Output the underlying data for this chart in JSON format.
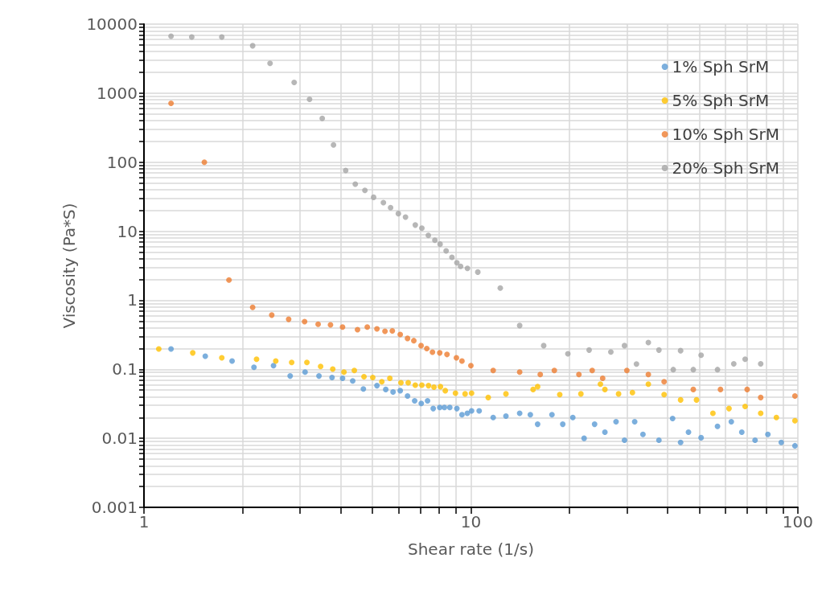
{
  "chart_data": {
    "type": "scatter",
    "xlabel": "Shear rate (1/s)",
    "ylabel": "Viscosity (Pa*S)",
    "log": "xy",
    "marker": "circle",
    "grid": true,
    "legend": "top right",
    "xlim": [
      1,
      100
    ],
    "ylim": [
      0.001,
      10000
    ],
    "xticks": [
      1,
      {
        "value": 2,
        "label": null
      },
      {
        "value": 3,
        "label": null
      },
      {
        "value": 4,
        "label": null
      },
      {
        "value": 5,
        "label": null
      },
      {
        "value": 6,
        "label": null
      },
      {
        "value": 7,
        "label": null
      },
      {
        "value": 8,
        "label": null
      },
      {
        "value": 9,
        "label": null
      },
      10,
      {
        "value": 20,
        "label": null
      },
      {
        "value": 30,
        "label": null
      },
      {
        "value": 40,
        "label": null
      },
      {
        "value": 50,
        "label": null
      },
      {
        "value": 60,
        "label": null
      },
      {
        "value": 70,
        "label": null
      },
      {
        "value": 80,
        "label": null
      },
      {
        "value": 90,
        "label": null
      },
      100
    ],
    "yticks": [
      0.001,
      {
        "value": 0.002,
        "label": null
      },
      {
        "value": 0.003,
        "label": null
      },
      {
        "value": 0.004,
        "label": null
      },
      {
        "value": 0.005,
        "label": null
      },
      {
        "value": 0.006,
        "label": null
      },
      {
        "value": 0.007,
        "label": null
      },
      {
        "value": 0.008,
        "label": null
      },
      {
        "value": 0.009,
        "label": null
      },
      0.01,
      {
        "value": 0.02,
        "label": null
      },
      {
        "value": 0.03,
        "label": null
      },
      {
        "value": 0.04,
        "label": null
      },
      {
        "value": 0.05,
        "label": null
      },
      {
        "value": 0.06,
        "label": null
      },
      {
        "value": 0.07,
        "label": null
      },
      {
        "value": 0.08,
        "label": null
      },
      {
        "value": 0.09,
        "label": null
      },
      0.1,
      {
        "value": 0.2,
        "label": null
      },
      {
        "value": 0.3,
        "label": null
      },
      {
        "value": 0.4,
        "label": null
      },
      {
        "value": 0.5,
        "label": null
      },
      {
        "value": 0.6,
        "label": null
      },
      {
        "value": 0.7,
        "label": null
      },
      {
        "value": 0.8,
        "label": null
      },
      {
        "value": 0.9,
        "label": null
      },
      1,
      {
        "value": 2,
        "label": null
      },
      {
        "value": 3,
        "label": null
      },
      {
        "value": 4,
        "label": null
      },
      {
        "value": 5,
        "label": null
      },
      {
        "value": 6,
        "label": null
      },
      {
        "value": 7,
        "label": null
      },
      {
        "value": 8,
        "label": null
      },
      {
        "value": 9,
        "label": null
      },
      10,
      {
        "value": 20,
        "label": null
      },
      {
        "value": 30,
        "label": null
      },
      {
        "value": 40,
        "label": null
      },
      {
        "value": 50,
        "label": null
      },
      {
        "value": 60,
        "label": null
      },
      {
        "value": 70,
        "label": null
      },
      {
        "value": 80,
        "label": null
      },
      {
        "value": 90,
        "label": null
      },
      100,
      {
        "value": 200,
        "label": null
      },
      {
        "value": 300,
        "label": null
      },
      {
        "value": 400,
        "label": null
      },
      {
        "value": 500,
        "label": null
      },
      {
        "value": 600,
        "label": null
      },
      {
        "value": 700,
        "label": null
      },
      {
        "value": 800,
        "label": null
      },
      {
        "value": 900,
        "label": null
      },
      1000,
      {
        "value": 2000,
        "label": null
      },
      {
        "value": 3000,
        "label": null
      },
      {
        "value": 4000,
        "label": null
      },
      {
        "value": 5000,
        "label": null
      },
      {
        "value": 6000,
        "label": null
      },
      {
        "value": 7000,
        "label": null
      },
      {
        "value": 8000,
        "label": null
      },
      {
        "value": 9000,
        "label": null
      },
      10000
    ],
    "series": [
      {
        "name": "1% Sph SrM",
        "color": "#5b9bd5",
        "x": [
          1.21,
          1.54,
          1.86,
          2.17,
          2.49,
          2.8,
          3.11,
          3.43,
          3.76,
          4.05,
          4.35,
          4.69,
          5.16,
          5.49,
          5.78,
          6.08,
          6.4,
          6.73,
          7.05,
          7.37,
          7.67,
          8.03,
          8.3,
          8.62,
          9.06,
          9.39,
          9.75,
          10.05,
          10.6,
          11.7,
          12.8,
          14.1,
          15.2,
          16,
          17.7,
          19.1,
          20.5,
          22.2,
          23.9,
          25.7,
          27.8,
          29.5,
          31.7,
          33.6,
          37.6,
          41.4,
          43.8,
          46.3,
          50.6,
          56.8,
          62.6,
          67.4,
          74,
          81,
          89,
          98
        ],
        "values": [
          0.197,
          0.155,
          0.132,
          0.107,
          0.113,
          0.08,
          0.091,
          0.08,
          0.076,
          0.074,
          0.068,
          0.052,
          0.058,
          0.051,
          0.047,
          0.049,
          0.041,
          0.035,
          0.032,
          0.035,
          0.027,
          0.028,
          0.028,
          0.028,
          0.027,
          0.022,
          0.023,
          0.025,
          0.025,
          0.02,
          0.021,
          0.023,
          0.022,
          0.016,
          0.022,
          0.016,
          0.02,
          0.01,
          0.016,
          0.0123,
          0.0174,
          0.0094,
          0.0174,
          0.0114,
          0.0094,
          0.0194,
          0.0087,
          0.0123,
          0.0102,
          0.0149,
          0.0174,
          0.0123,
          0.0094,
          0.0114,
          0.0087,
          0.0078
        ]
      },
      {
        "name": "5% Sph SrM",
        "color": "#ffc000",
        "x": [
          1.11,
          1.41,
          1.73,
          2.21,
          2.53,
          2.83,
          3.15,
          3.47,
          3.78,
          4.09,
          4.4,
          4.71,
          5.01,
          5.34,
          5.65,
          6.11,
          6.43,
          6.76,
          7.08,
          7.42,
          7.71,
          8.07,
          8.35,
          8.97,
          9.6,
          10.05,
          11.3,
          12.8,
          15.5,
          16,
          18.7,
          21.7,
          24.9,
          25.7,
          28.3,
          31.2,
          34.9,
          39,
          43.8,
          49,
          55,
          61.6,
          69,
          77,
          86,
          98
        ],
        "values": [
          0.197,
          0.173,
          0.147,
          0.14,
          0.132,
          0.126,
          0.126,
          0.11,
          0.101,
          0.091,
          0.096,
          0.078,
          0.076,
          0.066,
          0.074,
          0.064,
          0.064,
          0.059,
          0.059,
          0.058,
          0.055,
          0.056,
          0.049,
          0.045,
          0.044,
          0.045,
          0.039,
          0.044,
          0.051,
          0.056,
          0.043,
          0.044,
          0.061,
          0.051,
          0.044,
          0.046,
          0.061,
          0.043,
          0.036,
          0.036,
          0.023,
          0.027,
          0.029,
          0.023,
          0.02,
          0.018
        ]
      },
      {
        "name": "10% Sph SrM",
        "color": "#ed7d31",
        "x": [
          1.21,
          1.53,
          1.82,
          2.15,
          2.46,
          2.77,
          3.1,
          3.41,
          3.72,
          4.05,
          4.5,
          4.82,
          5.16,
          5.46,
          5.75,
          6.08,
          6.4,
          6.69,
          7.04,
          7.33,
          7.63,
          8.03,
          8.45,
          9.03,
          9.39,
          10,
          11.7,
          14.1,
          16.3,
          18,
          21.4,
          23.5,
          25.3,
          30,
          34.9,
          39,
          47.9,
          58,
          70,
          77,
          98
        ],
        "values": [
          713,
          100,
          1.96,
          0.79,
          0.61,
          0.53,
          0.49,
          0.45,
          0.44,
          0.41,
          0.375,
          0.41,
          0.385,
          0.355,
          0.36,
          0.32,
          0.28,
          0.26,
          0.22,
          0.2,
          0.177,
          0.173,
          0.164,
          0.147,
          0.132,
          0.113,
          0.096,
          0.091,
          0.084,
          0.096,
          0.084,
          0.096,
          0.074,
          0.096,
          0.084,
          0.066,
          0.051,
          0.051,
          0.051,
          0.039,
          0.041
        ]
      },
      {
        "name": "20% Sph SrM",
        "color": "#a5a5a5",
        "x": [
          1.21,
          1.4,
          1.73,
          2.15,
          2.43,
          2.88,
          3.21,
          3.51,
          3.8,
          4.14,
          4.43,
          4.74,
          5.04,
          5.4,
          5.68,
          6,
          6.31,
          6.76,
          7.08,
          7.41,
          7.76,
          8.05,
          8.4,
          8.75,
          9.06,
          9.3,
          9.76,
          10.5,
          12.3,
          14.1,
          16.7,
          19.8,
          23,
          26.8,
          29.5,
          32.1,
          34.9,
          37.6,
          41.6,
          43.8,
          47.9,
          50.6,
          56.8,
          63.7,
          69,
          77
        ],
        "values": [
          6700,
          6500,
          6500,
          4860,
          2700,
          1430,
          815,
          430,
          178,
          76,
          48,
          39,
          31,
          26,
          22,
          18,
          16,
          12.3,
          11.1,
          8.7,
          7.4,
          6.5,
          5.2,
          4.2,
          3.5,
          3.1,
          2.9,
          2.56,
          1.5,
          0.43,
          0.22,
          0.168,
          0.19,
          0.178,
          0.22,
          0.119,
          0.244,
          0.19,
          0.099,
          0.186,
          0.099,
          0.16,
          0.099,
          0.12,
          0.14,
          0.12
        ]
      }
    ]
  }
}
